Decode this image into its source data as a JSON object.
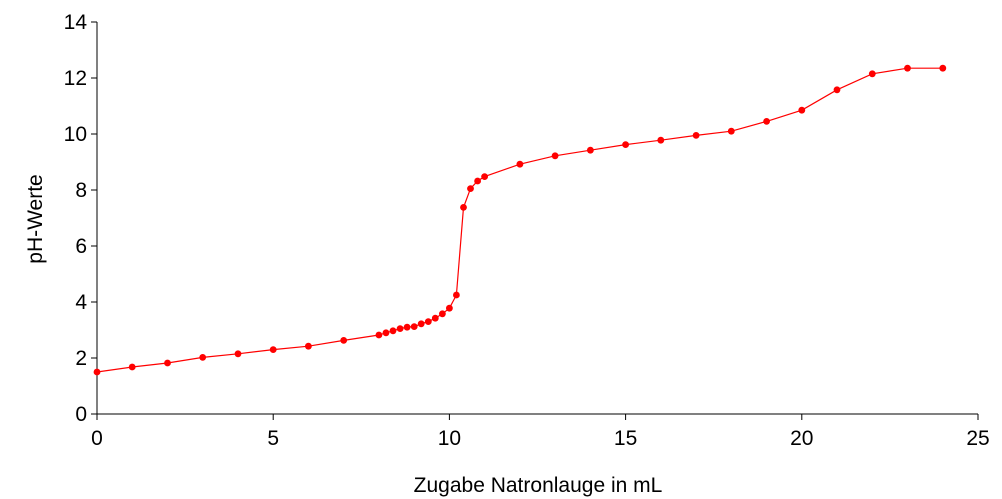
{
  "chart_data": {
    "type": "line",
    "title": "",
    "xlabel": "Zugabe Natronlauge in mL",
    "ylabel": "pH-Werte",
    "xlim": [
      0,
      25
    ],
    "ylim": [
      0,
      14
    ],
    "xticks": [
      0,
      5,
      10,
      15,
      20,
      25
    ],
    "yticks": [
      0,
      2,
      4,
      6,
      8,
      10,
      12,
      14
    ],
    "grid": false,
    "legend": "none",
    "color": "#ff0000",
    "series": [
      {
        "x": [
          0,
          1,
          2,
          3,
          4,
          5,
          6,
          7,
          8,
          8.2,
          8.4,
          8.6,
          8.8,
          9,
          9.2,
          9.4,
          9.6,
          9.8,
          10,
          10.2,
          10.4,
          10.6,
          10.8,
          11,
          12,
          13,
          14,
          15,
          16,
          17,
          18,
          19,
          20,
          21,
          22,
          23,
          24
        ],
        "y": [
          1.5,
          1.68,
          1.82,
          2.02,
          2.15,
          2.3,
          2.42,
          2.63,
          2.82,
          2.9,
          2.97,
          3.05,
          3.1,
          3.12,
          3.22,
          3.3,
          3.42,
          3.58,
          3.78,
          4.25,
          7.38,
          8.05,
          8.32,
          8.48,
          8.92,
          9.22,
          9.42,
          9.62,
          9.78,
          9.95,
          10.1,
          10.45,
          10.85,
          11.58,
          12.15,
          12.35,
          12.35
        ]
      }
    ]
  }
}
